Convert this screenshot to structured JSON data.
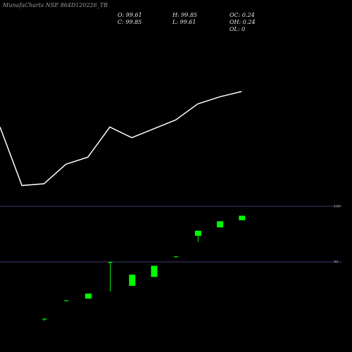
{
  "header": {
    "title_parts": [
      "Munafa",
      "Charts",
      "NSE",
      "864D120226_TB"
    ]
  },
  "ohlc": {
    "open": "O: 99.61",
    "close": "C: 99.85",
    "high": "H: 99.85",
    "low": "L: 99.61",
    "oc": "OC: 0.24",
    "oh": "OH: 0.24",
    "ol": "OL: 0"
  },
  "chart_data": [
    {
      "type": "line",
      "title": "",
      "x": [
        1,
        2,
        3,
        4,
        5,
        6,
        7,
        8,
        9,
        10,
        11,
        12
      ],
      "values": [
        99.05,
        98.72,
        98.73,
        98.84,
        98.88,
        99.05,
        98.99,
        99.04,
        99.09,
        99.18,
        99.22,
        99.25
      ],
      "ylim": [
        98.5,
        99.4
      ],
      "color": "#ffffff"
    },
    {
      "type": "candlestick",
      "title": "",
      "y_ticks": [
        99,
        100
      ],
      "ylim": [
        97.95,
        100.2
      ],
      "grid_color": "#3c3c78",
      "up_color": "#00ff00",
      "candles": [
        {
          "o": 97.98,
          "h": 97.98,
          "l": 97.94,
          "c": 97.98
        },
        {
          "o": 98.31,
          "h": 98.31,
          "l": 98.31,
          "c": 98.31
        },
        {
          "o": 98.34,
          "h": 98.43,
          "l": 98.34,
          "c": 98.43
        },
        {
          "o": 99.0,
          "h": 99.0,
          "l": 98.47,
          "c": 99.0
        },
        {
          "o": 98.57,
          "h": 98.77,
          "l": 98.57,
          "c": 98.77
        },
        {
          "o": 98.73,
          "h": 98.93,
          "l": 98.73,
          "c": 98.93
        },
        {
          "o": 99.1,
          "h": 99.1,
          "l": 99.1,
          "c": 99.1
        },
        {
          "o": 99.47,
          "h": 99.56,
          "l": 99.36,
          "c": 99.56
        },
        {
          "o": 99.62,
          "h": 99.73,
          "l": 99.62,
          "c": 99.73
        },
        {
          "o": 99.75,
          "h": 99.83,
          "l": 99.75,
          "c": 99.83
        }
      ]
    }
  ]
}
